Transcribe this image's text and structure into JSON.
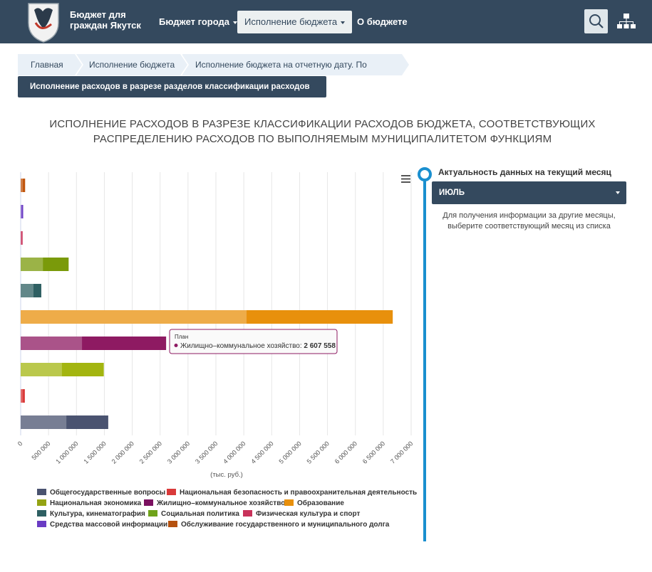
{
  "header": {
    "brand_line1": "Бюджет для",
    "brand_line2": "граждан Якутск",
    "nav": [
      {
        "label": "Бюджет города"
      },
      {
        "label": "Исполнение бюджета"
      },
      {
        "label": "О бюджете"
      }
    ]
  },
  "breadcrumbs": [
    "Главная",
    "Исполнение бюджета",
    "Исполнение бюджета на отчетную дату. По расходам",
    "Исполнение расходов в разрезе разделов классификации расходов бюджета"
  ],
  "page_title_line1": "ИСПОЛНЕНИЕ РАСХОДОВ В РАЗРЕЗЕ КЛАССИФИКАЦИИ РАСХОДОВ БЮДЖЕТА, СООТВЕТСТВУЮЩИХ",
  "page_title_line2": "РАСПРЕДЕЛЕНИЮ РАСХОДОВ ПО ВЫПОЛНЯЕМЫМ МУНИЦИПАЛИТЕТОМ ФУНКЦИЯМ",
  "panel": {
    "title": "Актуальность данных на текущий месяц",
    "selected_month": "ИЮЛЬ",
    "note_line1": "Для получения информации за другие месяцы,",
    "note_line2": "выберите соответствующий месяц из списка"
  },
  "chart_data": {
    "type": "bar",
    "orientation": "horizontal",
    "xlabel": "(тыс. руб.)",
    "xlim": [
      0,
      7000000
    ],
    "x_ticks": [
      "0",
      "500 000",
      "1 000 000",
      "1 500 000",
      "2 000 000",
      "2 500 000",
      "3 000 000",
      "3 500 000",
      "4 000 000",
      "4 500 000",
      "5 000 000",
      "5 500 000",
      "6 000 000",
      "6 500 000",
      "7 000 000"
    ],
    "grid": true,
    "legend_position": "bottom",
    "categories": [
      {
        "name": "Обслуживание государственного и муниципального долга",
        "color": "#c0540b",
        "executed": 40000,
        "plan": 80000
      },
      {
        "name": "Средства массовой информации",
        "color": "#6a3cc4",
        "executed": 25000,
        "plan": 45000
      },
      {
        "name": "Физическая культура и спорт",
        "color": "#c8325a",
        "executed": 20000,
        "plan": 35000
      },
      {
        "name": "Социальная политика",
        "color": "#7a9a0a",
        "executed": 400000,
        "plan": 860000
      },
      {
        "name": "Культура, кинематография",
        "color": "#2e5f62",
        "executed": 230000,
        "plan": 370000
      },
      {
        "name": "Образование",
        "color": "#e8900c",
        "executed": 4050000,
        "plan": 6670000
      },
      {
        "name": "Жилищно-коммунальное хозяйство",
        "color": "#8e1a62",
        "executed": 1100000,
        "plan": 2607558
      },
      {
        "name": "Национальная экономика",
        "color": "#a3b510",
        "executed": 740000,
        "plan": 1490000
      },
      {
        "name": "Национальная безопасность и правоохранительная деятельность",
        "color": "#d93a3a",
        "executed": 35000,
        "plan": 75000
      },
      {
        "name": "Общегосударственные вопросы",
        "color": "#4a5370",
        "executed": 820000,
        "plan": 1570000
      }
    ],
    "tooltip": {
      "series": "План",
      "category": "Жилищно–коммунальное хозяйство:",
      "value": "2 607 558"
    }
  },
  "legend": [
    {
      "label": "Общегосударственные вопросы",
      "color": "#4a5370"
    },
    {
      "label": "Национальная безопасность и правоохранительная деятельность",
      "color": "#d93a3a"
    },
    {
      "label": "Национальная экономика",
      "color": "#94a313"
    },
    {
      "label": "Жилищно–коммунальное хозяйство",
      "color": "#7b1060"
    },
    {
      "label": "Образование",
      "color": "#e8900c"
    },
    {
      "label": "Культура, кинематография",
      "color": "#2e5f62"
    },
    {
      "label": "Социальная политика",
      "color": "#6fa31a"
    },
    {
      "label": "Физическая культура и спорт",
      "color": "#c8325a"
    },
    {
      "label": "Средства массовой информации",
      "color": "#6a3cc4"
    },
    {
      "label": "Обслуживание государственного и муниципального долга",
      "color": "#b5510f"
    }
  ]
}
